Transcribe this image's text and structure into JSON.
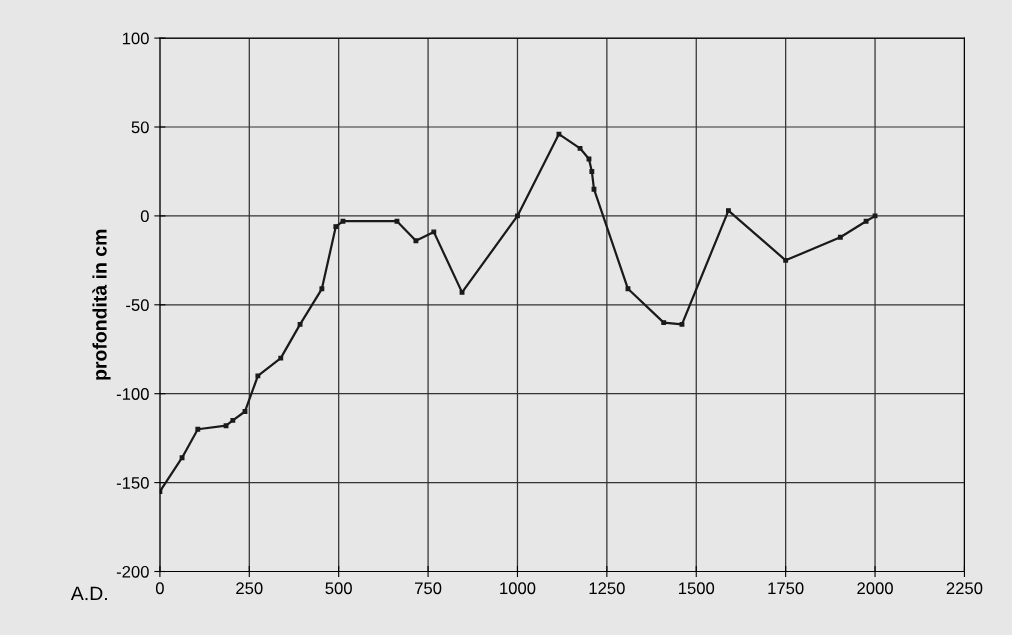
{
  "chart_data": {
    "type": "line",
    "ylabel": "profondità in cm",
    "annotations": [
      "A.D."
    ],
    "x": [
      0,
      62,
      106,
      185,
      204,
      238,
      274,
      338,
      392,
      453,
      492,
      512,
      663,
      716,
      766,
      845,
      1000,
      1116,
      1175,
      1200,
      1208,
      1214,
      1309,
      1409,
      1460,
      1590,
      1750,
      1903,
      1975,
      2000
    ],
    "series": [
      {
        "color": "#1a1a1a",
        "values": [
          -155,
          -136,
          -120,
          -118,
          -115,
          -110,
          -90,
          -80,
          -61,
          -41,
          -6,
          -3,
          -3,
          -14,
          -9,
          -43,
          0,
          46,
          38,
          32,
          25,
          15,
          -41,
          -60,
          -61,
          3,
          -25,
          -12,
          -3,
          0
        ]
      }
    ],
    "xlim": [
      0,
      2250
    ],
    "xticks": [
      0,
      250,
      500,
      750,
      1000,
      1250,
      1500,
      1750,
      2000,
      2250
    ],
    "ylim": [
      -200,
      100
    ],
    "yticks": [
      -200,
      -150,
      -100,
      -50,
      0,
      50,
      100
    ],
    "grid": true,
    "marker": "square",
    "line_style": "solid",
    "legend": false
  }
}
